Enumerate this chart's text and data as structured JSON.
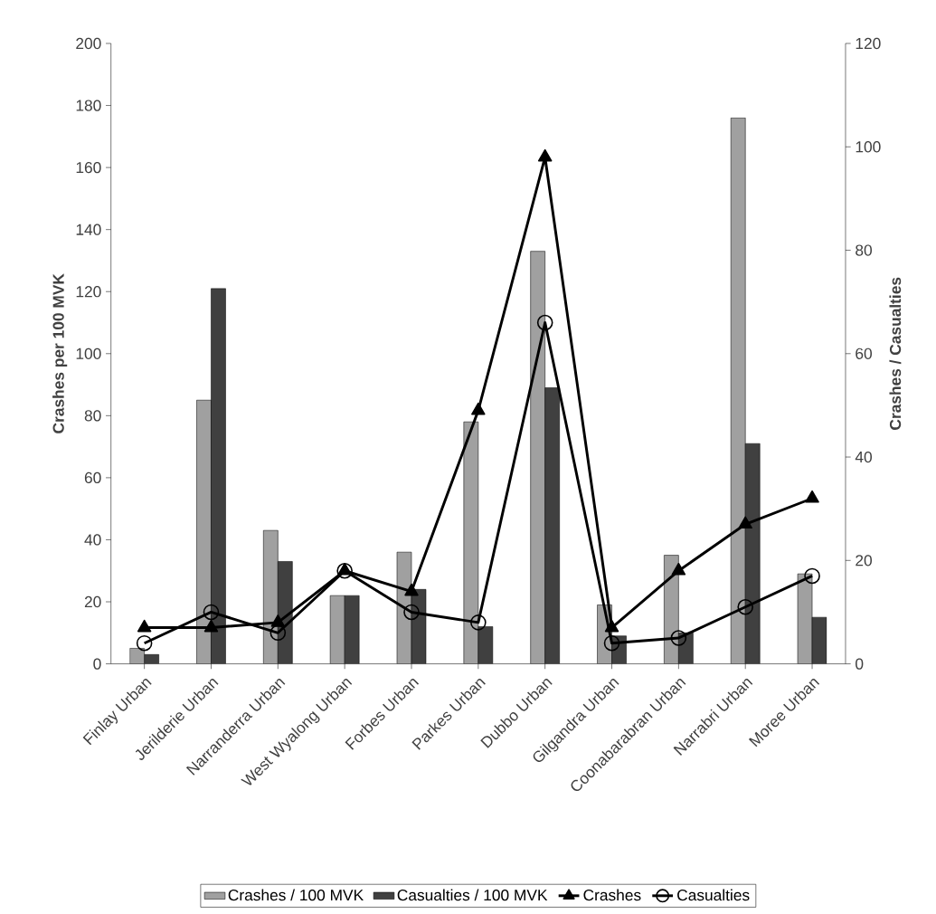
{
  "chart_data": {
    "type": "bar",
    "ylabel": "Crashes per 100 MVK",
    "y2label": "Crashes / Casualties",
    "categories": [
      "Finlay Urban",
      "Jerilderie Urban",
      "Narranderra Urban",
      "West Wyalong Urban",
      "Forbes Urban",
      "Parkes Urban",
      "Dubbo Urban",
      "Gilgandra Urban",
      "Coonabarabran Urban",
      "Narrabri Urban",
      "Moree Urban"
    ],
    "ylim": [
      0,
      200
    ],
    "yticks": [
      0,
      20,
      40,
      60,
      80,
      100,
      120,
      140,
      160,
      180,
      200
    ],
    "y2lim": [
      0,
      120
    ],
    "y2ticks": [
      0,
      20,
      40,
      60,
      80,
      100,
      120
    ],
    "legend": "bottom",
    "series": [
      {
        "name": "Crashes / 100 MVK",
        "color": "#a0a0a0",
        "values": [
          5,
          85,
          43,
          22,
          36,
          78,
          133,
          19,
          35,
          176,
          29
        ]
      },
      {
        "name": "Casualties / 100 MVK",
        "color": "#404040",
        "values": [
          3,
          121,
          33,
          22,
          24,
          12,
          89,
          9,
          10,
          71,
          15
        ]
      },
      {
        "name": "Crashes",
        "type": "line",
        "axis": "y2",
        "color": "#000000",
        "marker": "triangle",
        "values": [
          7,
          7,
          8,
          18,
          14,
          49,
          98,
          7,
          18,
          27,
          32
        ]
      },
      {
        "name": "Casualties",
        "type": "line",
        "axis": "y2",
        "color": "#000000",
        "marker": "circle",
        "values": [
          4,
          10,
          6,
          18,
          10,
          8,
          66,
          4,
          5,
          11,
          17
        ]
      }
    ]
  }
}
